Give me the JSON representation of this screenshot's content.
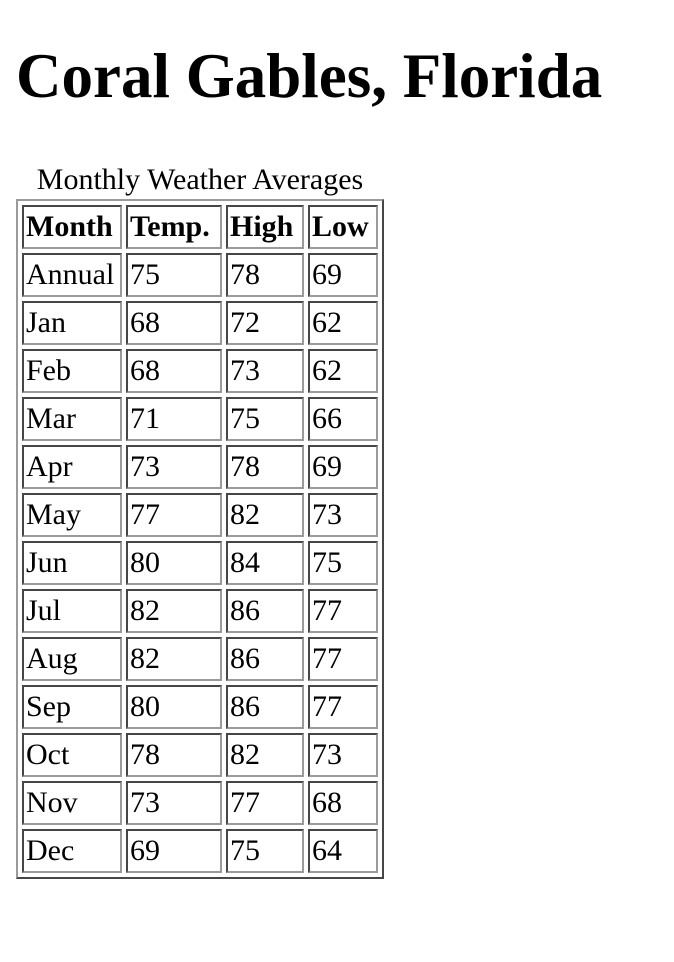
{
  "page": {
    "title": "Coral Gables, Florida"
  },
  "table": {
    "caption": "Monthly Weather Averages",
    "headers": [
      "Month",
      "Temp.",
      "High",
      "Low"
    ],
    "rows": [
      [
        "Annual",
        "75",
        "78",
        "69"
      ],
      [
        "Jan",
        "68",
        "72",
        "62"
      ],
      [
        "Feb",
        "68",
        "73",
        "62"
      ],
      [
        "Mar",
        "71",
        "75",
        "66"
      ],
      [
        "Apr",
        "73",
        "78",
        "69"
      ],
      [
        "May",
        "77",
        "82",
        "73"
      ],
      [
        "Jun",
        "80",
        "84",
        "75"
      ],
      [
        "Jul",
        "82",
        "86",
        "77"
      ],
      [
        "Aug",
        "82",
        "86",
        "77"
      ],
      [
        "Sep",
        "80",
        "86",
        "77"
      ],
      [
        "Oct",
        "78",
        "82",
        "73"
      ],
      [
        "Nov",
        "73",
        "77",
        "68"
      ],
      [
        "Dec",
        "69",
        "75",
        "64"
      ]
    ]
  }
}
